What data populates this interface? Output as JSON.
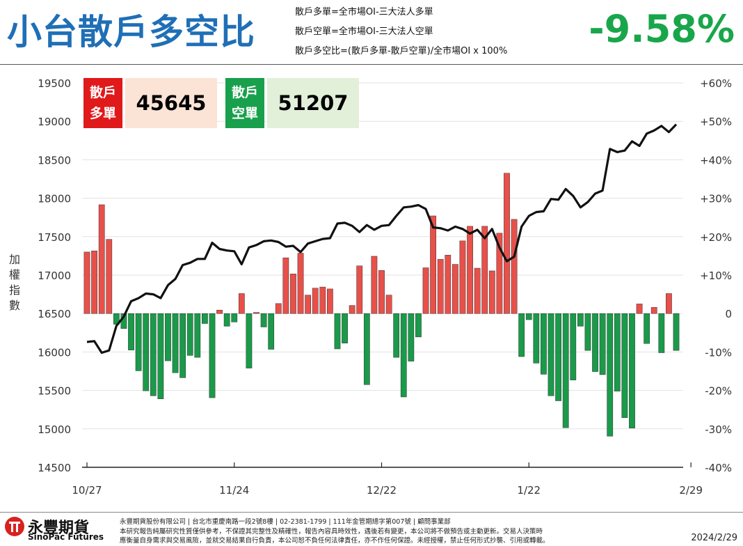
{
  "header": {
    "title": "小台散戶多空比",
    "formula_lines": [
      "散戶多單=全市場OI-三大法人多單",
      "散戶空單=全市場OI-三大法人空單",
      "散戶多空比=(散戶多單-散戶空單)/全市場OI x 100%"
    ],
    "headline_value": "-9.58%"
  },
  "boxes": {
    "long": {
      "tag_line1": "散戶",
      "tag_line2": "多單",
      "value": "45645"
    },
    "short": {
      "tag_line1": "散戶",
      "tag_line2": "空單",
      "value": "51207"
    }
  },
  "footer": {
    "logo_zh": "永豐期貨",
    "logo_en": "SinoPac Futures",
    "disclaimer": [
      "永豐期貨股份有限公司 | 台北市重慶南路一段2號8樓 | 02-2381-1799 | 111年金管期總字第007號 | 顧問事業部",
      "本研究報告純屬研究性質僅供參考，不保證其完整性及精確性，報告內容具時效性，遇後若有變更，本公司將不做預告或主動更新。交易人決策時",
      "應衡量自身需求與交易風險，並就交易結果自行負責，本公司恕不負任何法律責任，亦不作任何保證。未經授權，禁止任何形式抄襲、引用或轉載。"
    ],
    "date": "2024/2/29"
  },
  "colors": {
    "title_blue": "#1f6fb6",
    "positive_bar": "#e8504a",
    "negative_bar": "#1a9a4a",
    "line": "#111111",
    "long_tag": "#e0191b",
    "long_bg": "#fbe3d6",
    "short_tag": "#18a04c",
    "short_bg": "#e2efd9"
  },
  "chart_data": {
    "type": "bar+line",
    "ylabel": "加權指數",
    "y_left_ticks": [
      "19500",
      "19000",
      "18500",
      "18000",
      "17500",
      "17000",
      "16500",
      "16000",
      "15500",
      "15000",
      "14500"
    ],
    "y_right_ticks": [
      "+60%",
      "+50%",
      "+40%",
      "+30%",
      "+20%",
      "+10%",
      "0",
      "-10%",
      "-20%",
      "-30%",
      "-40%"
    ],
    "ylim_left": [
      14500,
      19500
    ],
    "ylim_right": [
      -40,
      60
    ],
    "x_tick_labels": [
      "10/27",
      "11/24",
      "12/22",
      "1/22",
      "2/29"
    ],
    "x_tick_positions": [
      0,
      20,
      40,
      60,
      82
    ],
    "series": [
      {
        "name": "散戶多空比",
        "kind": "bar",
        "axis": "right",
        "values": [
          16,
          16.3,
          28.3,
          19.3,
          -2.8,
          -3.9,
          -9.5,
          -14.9,
          -20.1,
          -21.4,
          -22.2,
          -12.3,
          -15.4,
          -16.7,
          -10.9,
          -11.4,
          -2.6,
          -21.9,
          0.9,
          -3.3,
          -2.2,
          5.2,
          -14.2,
          0.3,
          -3.5,
          -9.3,
          2.6,
          14.5,
          10.3,
          15.7,
          4.8,
          6.6,
          6.9,
          6.4,
          -9.2,
          -7.7,
          2.1,
          12.4,
          -18.5,
          14.9,
          11.2,
          4.8,
          -11.4,
          -21.7,
          -12.4,
          -6.1,
          11.9,
          25.4,
          14.1,
          15.2,
          12.8,
          18.9,
          22.7,
          11.8,
          22.7,
          11.1,
          20.9,
          36.5,
          24.5,
          -11.2,
          -1.6,
          -12.9,
          -15.8,
          -21.4,
          -22.7,
          -29.7,
          -17.3,
          -3.3,
          -9.6,
          -15.1,
          -15.9,
          -31.9,
          -20.2,
          -27.1,
          -29.8,
          2.5,
          -7.8,
          1.6,
          -10.2,
          5.2,
          -9.6
        ]
      },
      {
        "name": "加權指數",
        "kind": "line",
        "axis": "left",
        "values": [
          16130,
          16140,
          15990,
          16020,
          16340,
          16460,
          16660,
          16700,
          16760,
          16750,
          16700,
          16870,
          16950,
          17130,
          17160,
          17210,
          17210,
          17420,
          17340,
          17320,
          17310,
          17140,
          17360,
          17390,
          17440,
          17450,
          17430,
          17370,
          17380,
          17300,
          17410,
          17440,
          17470,
          17480,
          17670,
          17680,
          17640,
          17560,
          17650,
          17590,
          17640,
          17650,
          17770,
          17880,
          17890,
          17910,
          17860,
          17620,
          17610,
          17580,
          17630,
          17600,
          17540,
          17590,
          17480,
          17600,
          17360,
          17180,
          17240,
          17630,
          17770,
          17820,
          17830,
          17990,
          17980,
          18120,
          18030,
          17880,
          17950,
          18060,
          18100,
          18640,
          18600,
          18620,
          18740,
          18680,
          18840,
          18880,
          18940,
          18860,
          18960
        ]
      }
    ]
  }
}
